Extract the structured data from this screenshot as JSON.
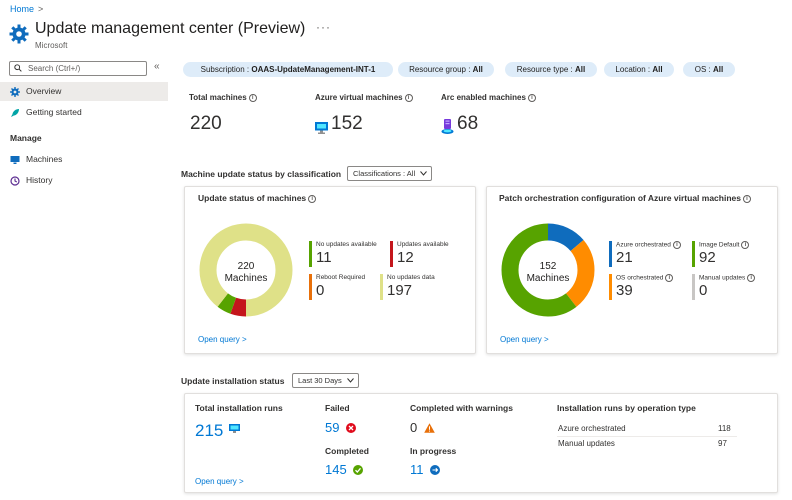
{
  "breadcrumb": {
    "home": "Home"
  },
  "header": {
    "title": "Update management center (Preview)",
    "subtitle": "Microsoft",
    "more": "···"
  },
  "sidebar": {
    "search_placeholder": "Search (Ctrl+/)",
    "collapse": "«",
    "items": [
      {
        "label": "Overview",
        "icon": "gear-icon",
        "active": true
      },
      {
        "label": "Getting started",
        "icon": "rocket-icon"
      }
    ],
    "manage_label": "Manage",
    "manage_items": [
      {
        "label": "Machines",
        "icon": "monitor-icon"
      },
      {
        "label": "History",
        "icon": "clock-icon"
      }
    ]
  },
  "filters": [
    {
      "key": "Subscription : ",
      "value": "OAAS-UpdateManagement-INT-1"
    },
    {
      "key": "Resource group : ",
      "value": "All"
    },
    {
      "key": "Resource type : ",
      "value": "All"
    },
    {
      "key": "Location : ",
      "value": "All"
    },
    {
      "key": "OS : ",
      "value": "All"
    }
  ],
  "stats": {
    "total_label": "Total machines",
    "total_value": "220",
    "azure_label": "Azure virtual machines",
    "azure_value": "152",
    "arc_label": "Arc enabled machines",
    "arc_value": "68"
  },
  "classification": {
    "heading": "Machine update status by classification",
    "dropdown": "Classifications : All"
  },
  "update_status_card": {
    "title": "Update status of machines",
    "center_value": "220",
    "center_label": "Machines",
    "legend": [
      {
        "label": "No updates available",
        "value": "11",
        "color": "#57a300"
      },
      {
        "label": "Updates available",
        "value": "12",
        "color": "#c4161c"
      },
      {
        "label": "Reboot Required",
        "value": "0",
        "color": "#e8700a"
      },
      {
        "label": "No updates data",
        "value": "197",
        "color": "#dfe188"
      }
    ],
    "open_query": "Open query >"
  },
  "patch_card": {
    "title": "Patch orchestration configuration of Azure virtual machines",
    "center_value": "152",
    "center_label": "Machines",
    "legend": [
      {
        "label": "Azure orchestrated",
        "value": "21",
        "color": "#0f6cbd"
      },
      {
        "label": "Image Default",
        "value": "92",
        "color": "#57a300"
      },
      {
        "label": "OS orchestrated",
        "value": "39",
        "color": "#ff8c00"
      },
      {
        "label": "Manual updates",
        "value": "0",
        "color": "#c8c6c4"
      }
    ],
    "open_query": "Open query >"
  },
  "installation": {
    "heading": "Update installation status",
    "dropdown": "Last 30 Days",
    "total_label": "Total installation runs",
    "total_value": "215",
    "failed_label": "Failed",
    "failed_value": "59",
    "completed_label": "Completed",
    "completed_value": "145",
    "warnings_label": "Completed with warnings",
    "warnings_value": "0",
    "progress_label": "In progress",
    "progress_value": "11",
    "ops_title": "Installation runs by operation type",
    "ops": [
      {
        "label": "Azure orchestrated",
        "value": "118"
      },
      {
        "label": "Manual updates",
        "value": "97"
      }
    ],
    "open_query": "Open query >"
  }
}
